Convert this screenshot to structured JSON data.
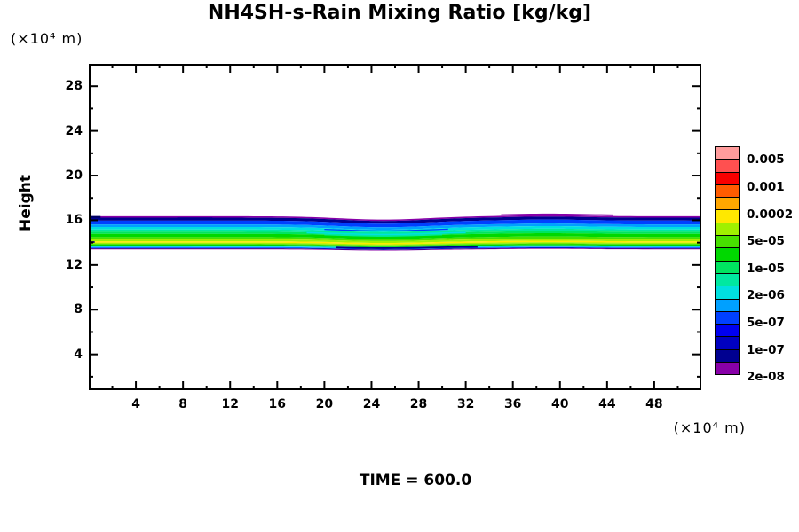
{
  "title": "NH4SH-s-Rain Mixing Ratio [kg/kg]",
  "time_label": "TIME = 600.0",
  "axes": {
    "x": {
      "unit": "(×10⁴  m)",
      "min": 0,
      "max": 52,
      "major_ticks": [
        4,
        8,
        12,
        16,
        20,
        24,
        28,
        32,
        36,
        40,
        44,
        48
      ],
      "minor_ticks": [
        2,
        6,
        10,
        14,
        18,
        22,
        26,
        30,
        34,
        38,
        42,
        46,
        50
      ]
    },
    "y": {
      "label": "Height",
      "unit": "(×10⁴  m)",
      "min": 0.8,
      "max": 30,
      "major_ticks": [
        4,
        8,
        12,
        16,
        20,
        24,
        28
      ],
      "minor_ticks": [
        2,
        6,
        10,
        14,
        18,
        22,
        26
      ]
    }
  },
  "colorbar": {
    "box_colors_top_to_bottom": [
      "#FF9C9C",
      "#FF5050",
      "#F80000",
      "#FF5C00",
      "#FFA600",
      "#FFE800",
      "#A0F000",
      "#48E000",
      "#00D800",
      "#00E460",
      "#00E8A0",
      "#00E0E0",
      "#00A0FF",
      "#0040FF",
      "#0000F0",
      "#0000C0",
      "#000090",
      "#8800A8"
    ],
    "labels": [
      "0.005",
      "0.001",
      "0.0002",
      "5e-05",
      "1e-05",
      "2e-06",
      "5e-07",
      "1e-07",
      "2e-08"
    ]
  },
  "chart_data": {
    "type": "heatmap",
    "subtype": "filled-contour",
    "title": "NH4SH-s-Rain Mixing Ratio [kg/kg]",
    "xlabel_unit": "(×10⁴ m)",
    "ylabel": "Height",
    "ylabel_unit": "(×10⁴ m)",
    "x_range": [
      0,
      52
    ],
    "y_range": [
      0.8,
      30
    ],
    "time": "600.0",
    "legend_levels_kg_per_kg": [
      "0.005",
      "0.001",
      "0.0002",
      "5e-05",
      "1e-05",
      "2e-06",
      "5e-07",
      "1e-07",
      "2e-08"
    ],
    "layer_description": "Thin horizontal rain layer between heights ~13.4 and ~16.4 (×10⁴ m), peak mixing ratio ~1e-04 kg/kg (yellow core near height 14.05), with a shallow dip of the whole layer near x = 20–32 and a slight rise near x = 35–44",
    "bands_top_to_bottom": [
      {
        "color": "#8800A8",
        "top": 16.36,
        "bottom": 16.23
      },
      {
        "color": "#000090",
        "top": 16.23,
        "bottom": 15.97
      },
      {
        "color": "#0040FF",
        "top": 15.97,
        "bottom": 15.63
      },
      {
        "color": "#00A0FF",
        "top": 15.63,
        "bottom": 15.4
      },
      {
        "color": "#00E0E0",
        "top": 15.4,
        "bottom": 15.18
      },
      {
        "color": "#00E8A0",
        "top": 15.18,
        "bottom": 14.97
      },
      {
        "color": "#00E460",
        "top": 14.97,
        "bottom": 14.78
      },
      {
        "color": "#00D800",
        "top": 14.78,
        "bottom": 14.5
      },
      {
        "color": "#48E000",
        "top": 14.5,
        "bottom": 14.3
      },
      {
        "color": "#A0F000",
        "top": 14.3,
        "bottom": 14.12
      },
      {
        "color": "#FFE800",
        "top": 14.12,
        "bottom": 13.99
      },
      {
        "color": "#A0F000",
        "top": 13.99,
        "bottom": 13.89
      },
      {
        "color": "#48E000",
        "top": 13.89,
        "bottom": 13.82
      },
      {
        "color": "#00D800",
        "top": 13.82,
        "bottom": 13.72
      },
      {
        "color": "#00E460",
        "top": 13.72,
        "bottom": 13.66
      },
      {
        "color": "#00E0E0",
        "top": 13.66,
        "bottom": 13.6
      },
      {
        "color": "#00A0FF",
        "top": 13.6,
        "bottom": 13.55
      },
      {
        "color": "#0040FF",
        "top": 13.55,
        "bottom": 13.5
      },
      {
        "color": "#000090",
        "top": 13.5,
        "bottom": 13.45
      },
      {
        "color": "#8800A8",
        "top": 13.45,
        "bottom": 13.4
      }
    ],
    "modulation": {
      "dip_center": 25,
      "dip_halfwidth": 5.2,
      "dip_depth": 0.3,
      "bump_center": 39,
      "bump_halfwidth": 4.5,
      "bump_height": 0.1,
      "depth_min_factor": 0.35,
      "stack_top": 16.36,
      "stack_bottom": 13.4
    },
    "streaks": [
      {
        "color": "#0040FF",
        "x1": 20.0,
        "x2": 30.5,
        "h": 15.28,
        "w": 1.3
      },
      {
        "color": "#00E0E0",
        "x1": 18.5,
        "x2": 32.0,
        "h": 14.93,
        "w": 1.6
      },
      {
        "color": "#00E8A0",
        "x1": 20.0,
        "x2": 30.0,
        "h": 14.8,
        "w": 1.6
      },
      {
        "color": "#000090",
        "x1": 21.0,
        "x2": 33.0,
        "h": 13.62,
        "w": 1.8
      },
      {
        "color": "#8800A8",
        "x1": 35.0,
        "x2": 44.5,
        "h": 16.44,
        "w": 1.5
      },
      {
        "color": "#000090",
        "x1": 7.5,
        "x2": 10.5,
        "h": 16.18,
        "w": 1.8
      },
      {
        "color": "#000060",
        "x1": 0.0,
        "x2": 1.2,
        "h": 16.3,
        "w": 2.0
      },
      {
        "color": "#000060",
        "x1": 0.0,
        "x2": 0.9,
        "h": 14.05,
        "w": 1.8
      }
    ]
  }
}
